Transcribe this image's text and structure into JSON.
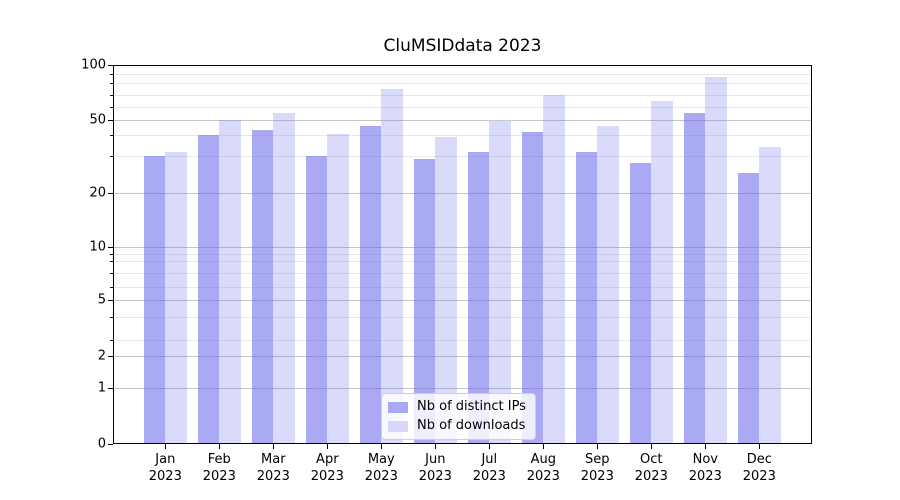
{
  "chart_data": {
    "type": "bar",
    "title": "CluMSIDdata 2023",
    "categories": [
      "Jan",
      "Feb",
      "Mar",
      "Apr",
      "May",
      "Jun",
      "Jul",
      "Aug",
      "Sep",
      "Oct",
      "Nov",
      "Dec"
    ],
    "x_tick_year": "2023",
    "series": [
      {
        "name": "Nb of distinct IPs",
        "color": "rgba(100,100,235,0.55)",
        "legend_color": "#a9a9f3",
        "values": [
          30,
          40,
          43,
          30,
          46,
          29,
          32,
          42,
          32,
          28,
          55,
          25
        ]
      },
      {
        "name": "Nb of downloads",
        "color": "rgba(100,100,235,0.24)",
        "legend_color": "#d8d8fa",
        "values": [
          32,
          50,
          55,
          41,
          75,
          39,
          49,
          70,
          46,
          65,
          86,
          34
        ]
      }
    ],
    "y_axis": {
      "scale": "symlog-like (linear below 1, log-ish above)",
      "range": [
        0,
        100
      ],
      "major_ticks": [
        0,
        1,
        2,
        5,
        10,
        20,
        50,
        100
      ],
      "minor_ticks": [
        3,
        4,
        6,
        7,
        8,
        9,
        30,
        40,
        60,
        70,
        80,
        90
      ],
      "scale_anchors": [
        [
          0,
          0
        ],
        [
          1,
          0.1478
        ],
        [
          2,
          0.2315
        ],
        [
          3,
          0.2744
        ],
        [
          4,
          0.3359
        ],
        [
          5,
          0.3799
        ],
        [
          6,
          0.4142
        ],
        [
          7,
          0.4504
        ],
        [
          8,
          0.4828
        ],
        [
          9,
          0.5014
        ],
        [
          10,
          0.5198
        ],
        [
          20,
          0.6623
        ],
        [
          30,
          0.7591
        ],
        [
          40,
          0.8145
        ],
        [
          50,
          0.8556
        ],
        [
          60,
          0.89
        ],
        [
          70,
          0.9216
        ],
        [
          80,
          0.9517
        ],
        [
          90,
          0.977
        ],
        [
          100,
          1.0
        ]
      ]
    },
    "grid": true,
    "legend_position": "lower center"
  },
  "colors": {
    "bar_dark": "#aaaaf4",
    "bar_light": "#d8d8fa",
    "major_grid": "#c6c6c6",
    "minor_grid": "#e8e8e8",
    "axis": "#000000",
    "background": "#ffffff"
  }
}
